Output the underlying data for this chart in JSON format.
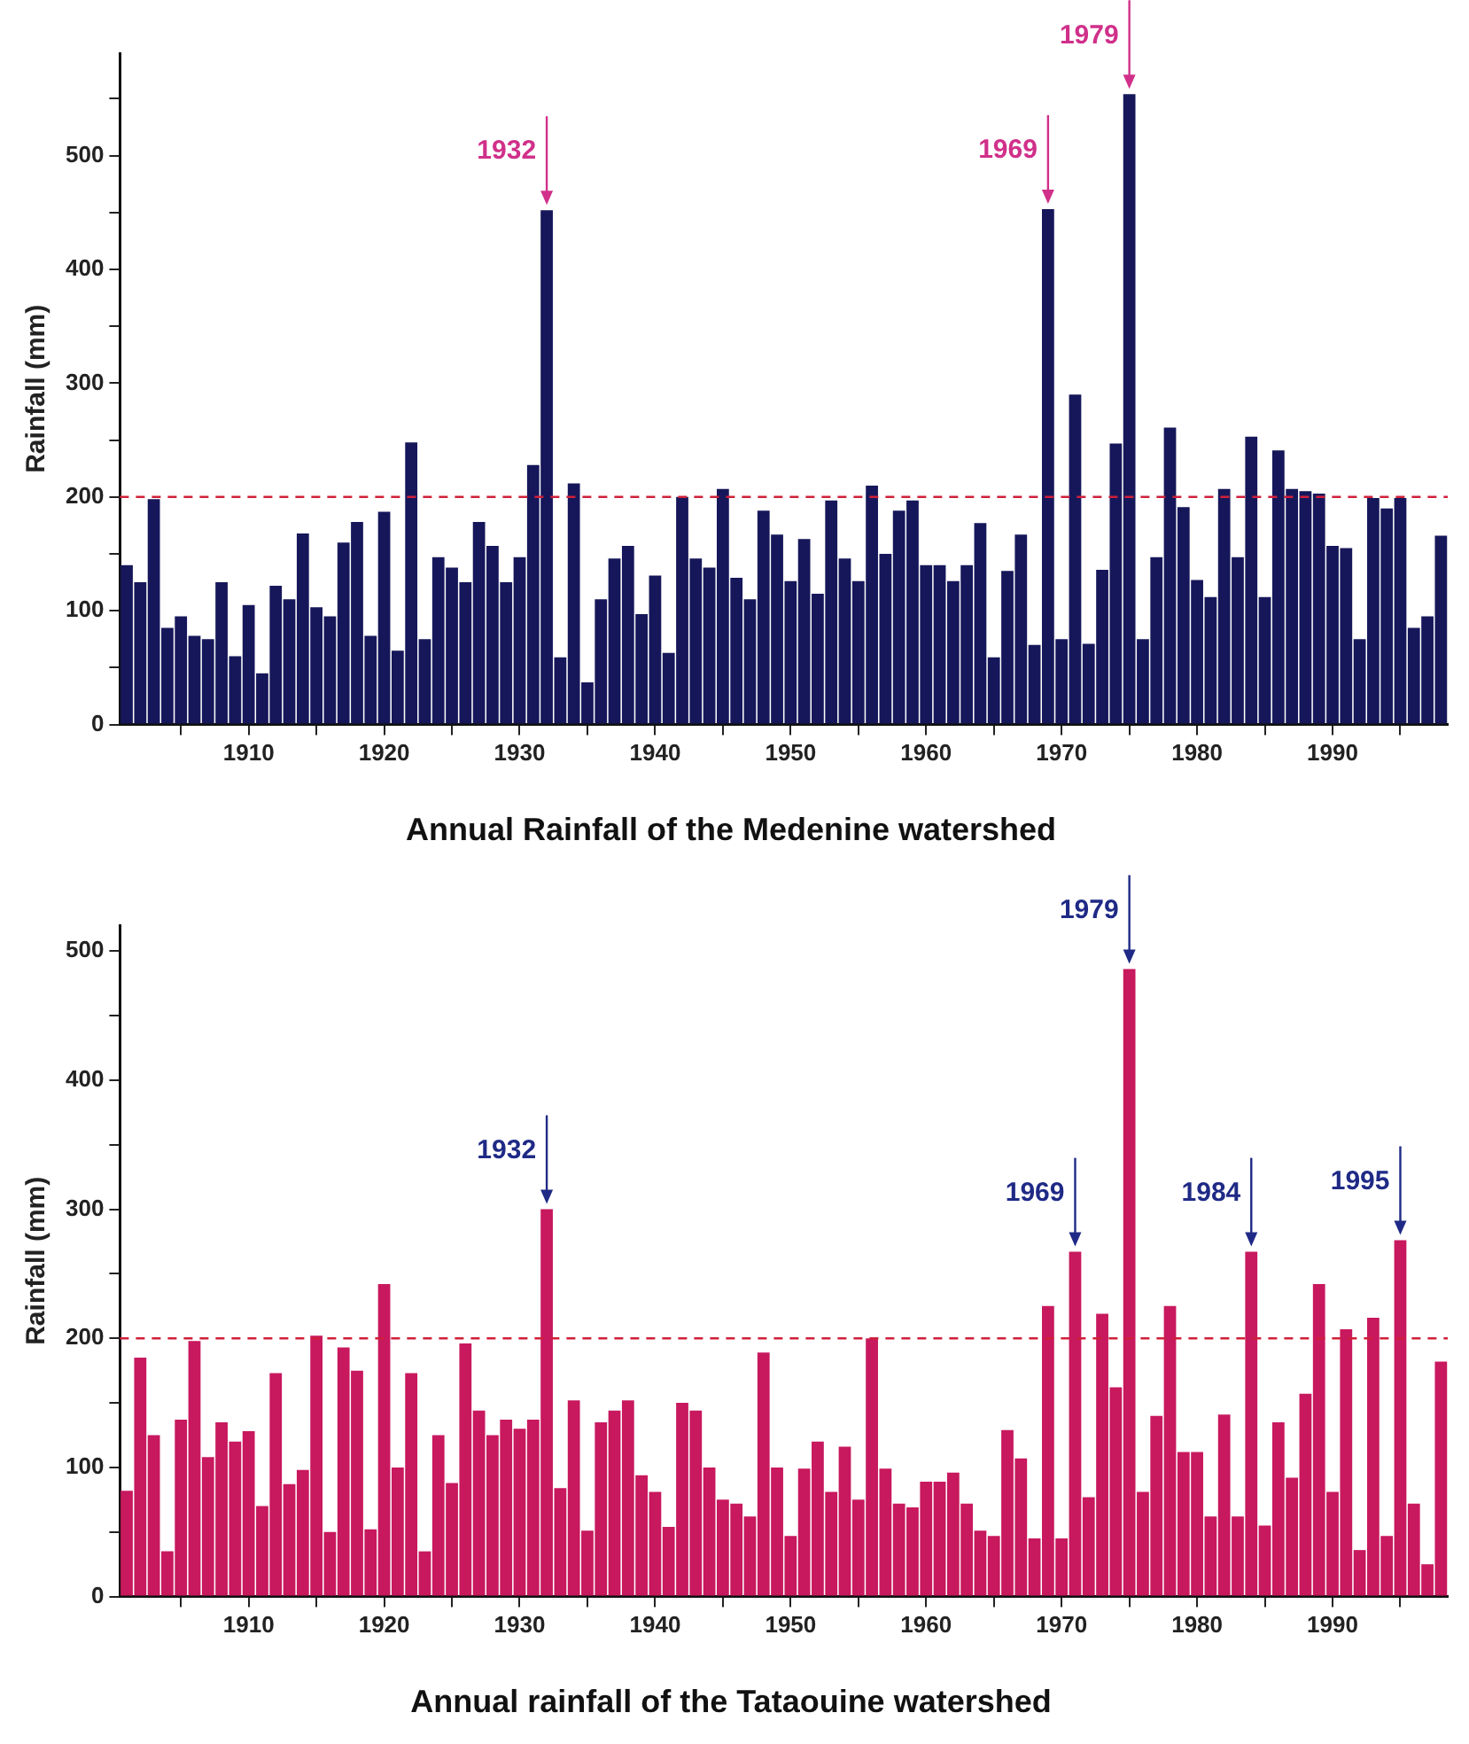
{
  "chart_data": [
    {
      "type": "bar",
      "title": "Annual Rainfall of the Medenine watershed",
      "ylabel": "Rainfall (mm)",
      "x": [
        1901,
        1902,
        1903,
        1904,
        1905,
        1906,
        1907,
        1908,
        1909,
        1910,
        1911,
        1912,
        1913,
        1914,
        1915,
        1916,
        1917,
        1918,
        1919,
        1920,
        1921,
        1922,
        1923,
        1924,
        1925,
        1926,
        1927,
        1928,
        1929,
        1930,
        1931,
        1932,
        1933,
        1934,
        1935,
        1936,
        1937,
        1938,
        1939,
        1940,
        1941,
        1942,
        1943,
        1944,
        1945,
        1946,
        1947,
        1948,
        1949,
        1950,
        1951,
        1952,
        1953,
        1954,
        1955,
        1956,
        1957,
        1958,
        1959,
        1960,
        1961,
        1962,
        1963,
        1964,
        1965,
        1966,
        1967,
        1968,
        1969,
        1970,
        1971,
        1972,
        1973,
        1974,
        1975,
        1976,
        1977,
        1978,
        1979,
        1980,
        1981,
        1982,
        1983,
        1984,
        1985,
        1986,
        1987,
        1988,
        1989,
        1990,
        1991,
        1992,
        1993,
        1994,
        1995,
        1996,
        1997,
        1998
      ],
      "values": [
        140,
        125,
        198,
        85,
        95,
        78,
        75,
        125,
        60,
        105,
        45,
        122,
        110,
        168,
        103,
        95,
        160,
        178,
        78,
        187,
        65,
        248,
        75,
        147,
        138,
        125,
        178,
        157,
        125,
        147,
        228,
        452,
        59,
        212,
        37,
        110,
        146,
        157,
        97,
        131,
        63,
        200,
        146,
        138,
        207,
        129,
        110,
        188,
        167,
        126,
        163,
        115,
        197,
        146,
        126,
        210,
        150,
        188,
        197,
        140,
        140,
        126,
        140,
        177,
        59,
        135,
        167,
        70,
        453,
        75,
        290,
        71,
        136,
        247,
        554,
        75,
        147,
        261,
        191,
        127,
        112,
        207,
        147,
        253,
        112,
        241,
        207,
        205,
        203,
        157,
        155,
        75,
        199,
        190,
        199,
        85,
        95,
        166
      ],
      "color": "#16175a",
      "xlim": [
        1900.5,
        1998.5
      ],
      "xticks": [
        {
          "value": 1905,
          "label": null
        },
        1910,
        {
          "value": 1915,
          "label": null
        },
        1920,
        {
          "value": 1925,
          "label": null
        },
        1930,
        {
          "value": 1935,
          "label": null
        },
        1940,
        {
          "value": 1945,
          "label": null
        },
        1950,
        {
          "value": 1955,
          "label": null
        },
        1960,
        {
          "value": 1965,
          "label": null
        },
        1970,
        {
          "value": 1975,
          "label": null
        },
        1980,
        {
          "value": 1985,
          "label": null
        },
        1990,
        {
          "value": 1995,
          "label": null
        }
      ],
      "ylim": [
        0,
        590
      ],
      "yticks": [
        0,
        {
          "value": 50,
          "label": null
        },
        100,
        {
          "value": 150,
          "label": null
        },
        200,
        {
          "value": 250,
          "label": null
        },
        300,
        {
          "value": 350,
          "label": null
        },
        400,
        {
          "value": 450,
          "label": null
        },
        500,
        {
          "value": 550,
          "label": null
        }
      ],
      "ref_lines": [
        {
          "axis": "y",
          "value": 200,
          "color": "#d0203a",
          "line_style": "dashed"
        }
      ],
      "annotations": [
        {
          "text": "1932",
          "x": 1932,
          "y": 452
        },
        {
          "text": "1969",
          "x": 1969,
          "y": 453
        },
        {
          "text": "1979",
          "x": 1975,
          "y": 554
        }
      ],
      "grid": false,
      "legend": false
    },
    {
      "type": "bar",
      "title": "Annual rainfall of the Tataouine watershed",
      "ylabel": "Rainfall (mm)",
      "x": [
        1901,
        1902,
        1903,
        1904,
        1905,
        1906,
        1907,
        1908,
        1909,
        1910,
        1911,
        1912,
        1913,
        1914,
        1915,
        1916,
        1917,
        1918,
        1919,
        1920,
        1921,
        1922,
        1923,
        1924,
        1925,
        1926,
        1927,
        1928,
        1929,
        1930,
        1931,
        1932,
        1933,
        1934,
        1935,
        1936,
        1937,
        1938,
        1939,
        1940,
        1941,
        1942,
        1943,
        1944,
        1945,
        1946,
        1947,
        1948,
        1949,
        1950,
        1951,
        1952,
        1953,
        1954,
        1955,
        1956,
        1957,
        1958,
        1959,
        1960,
        1961,
        1962,
        1963,
        1964,
        1965,
        1966,
        1967,
        1968,
        1969,
        1970,
        1971,
        1972,
        1973,
        1974,
        1975,
        1976,
        1977,
        1978,
        1979,
        1980,
        1981,
        1982,
        1983,
        1984,
        1985,
        1986,
        1987,
        1988,
        1989,
        1990,
        1991,
        1992,
        1993,
        1994,
        1995,
        1996,
        1997,
        1998
      ],
      "values": [
        82,
        185,
        125,
        35,
        137,
        198,
        108,
        135,
        120,
        128,
        70,
        173,
        87,
        98,
        202,
        50,
        193,
        175,
        52,
        242,
        100,
        173,
        35,
        125,
        88,
        196,
        144,
        125,
        137,
        130,
        137,
        300,
        84,
        152,
        51,
        135,
        144,
        152,
        94,
        81,
        54,
        150,
        144,
        100,
        75,
        72,
        62,
        189,
        100,
        47,
        99,
        120,
        81,
        116,
        75,
        200,
        99,
        72,
        69,
        89,
        89,
        96,
        72,
        51,
        47,
        129,
        107,
        45,
        225,
        45,
        267,
        77,
        219,
        162,
        486,
        81,
        140,
        225,
        112,
        112,
        62,
        141,
        62,
        267,
        55,
        135,
        92,
        157,
        242,
        81,
        207,
        36,
        216,
        47,
        276,
        72,
        25,
        182
      ],
      "color": "#c8185e",
      "xlim": [
        1900.5,
        1998.5
      ],
      "xticks": [
        {
          "value": 1905,
          "label": null
        },
        1910,
        {
          "value": 1915,
          "label": null
        },
        1920,
        {
          "value": 1925,
          "label": null
        },
        1930,
        {
          "value": 1935,
          "label": null
        },
        1940,
        {
          "value": 1945,
          "label": null
        },
        1950,
        {
          "value": 1955,
          "label": null
        },
        1960,
        {
          "value": 1965,
          "label": null
        },
        1970,
        {
          "value": 1975,
          "label": null
        },
        1980,
        {
          "value": 1985,
          "label": null
        },
        1990,
        {
          "value": 1995,
          "label": null
        }
      ],
      "ylim": [
        0,
        520
      ],
      "yticks": [
        0,
        {
          "value": 50,
          "label": null
        },
        100,
        {
          "value": 150,
          "label": null
        },
        200,
        {
          "value": 250,
          "label": null
        },
        300,
        {
          "value": 350,
          "label": null
        },
        400,
        {
          "value": 450,
          "label": null
        },
        500
      ],
      "ref_lines": [
        {
          "axis": "y",
          "value": 200,
          "color": "#d0203a",
          "line_style": "dashed"
        }
      ],
      "annotations": [
        {
          "text": "1932",
          "x": 1932,
          "y": 300
        },
        {
          "text": "1969",
          "x": 1971,
          "y": 267
        },
        {
          "text": "1979",
          "x": 1975,
          "y": 486
        },
        {
          "text": "1984",
          "x": 1984,
          "y": 267
        },
        {
          "text": "1995",
          "x": 1995,
          "y": 276
        }
      ],
      "grid": false,
      "legend": false
    }
  ]
}
